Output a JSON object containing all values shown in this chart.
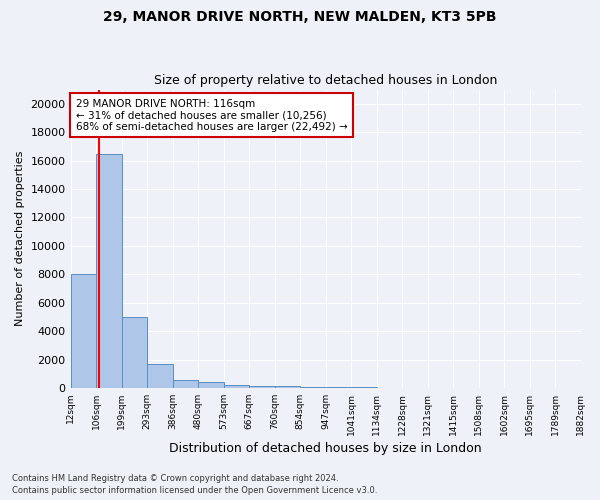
{
  "title1": "29, MANOR DRIVE NORTH, NEW MALDEN, KT3 5PB",
  "title2": "Size of property relative to detached houses in London",
  "xlabel": "Distribution of detached houses by size in London",
  "ylabel": "Number of detached properties",
  "bar_values": [
    8000,
    16500,
    5000,
    1700,
    600,
    400,
    250,
    175,
    150,
    100,
    75,
    50,
    20,
    10,
    5,
    3,
    2,
    1,
    0,
    0
  ],
  "bar_labels": [
    "12sqm",
    "106sqm",
    "199sqm",
    "293sqm",
    "386sqm",
    "480sqm",
    "573sqm",
    "667sqm",
    "760sqm",
    "854sqm",
    "947sqm",
    "1041sqm",
    "1134sqm",
    "1228sqm",
    "1321sqm",
    "1415sqm",
    "1508sqm",
    "1602sqm",
    "1695sqm",
    "1789sqm",
    "1882sqm"
  ],
  "bar_color": "#aec6e8",
  "bar_edge_color": "#5a8fc2",
  "annotation_title": "29 MANOR DRIVE NORTH: 116sqm",
  "annotation_line1": "← 31% of detached houses are smaller (10,256)",
  "annotation_line2": "68% of semi-detached houses are larger (22,492) →",
  "annotation_box_color": "#ffffff",
  "annotation_border_color": "#cc0000",
  "ylim": [
    0,
    21000
  ],
  "yticks": [
    0,
    2000,
    4000,
    6000,
    8000,
    10000,
    12000,
    14000,
    16000,
    18000,
    20000
  ],
  "footer1": "Contains HM Land Registry data © Crown copyright and database right 2024.",
  "footer2": "Contains public sector information licensed under the Open Government Licence v3.0.",
  "bg_color": "#eef2f8",
  "grid_color": "#ffffff"
}
